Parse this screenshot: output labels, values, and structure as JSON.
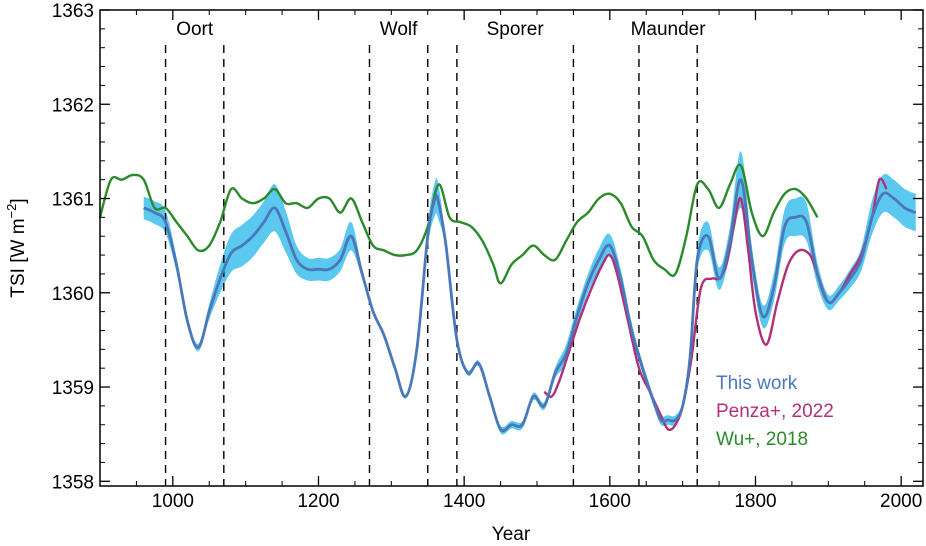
{
  "chart_data": {
    "type": "line",
    "xlabel": "Year",
    "ylabel": "TSI [W m",
    "ylabel_superscript": "−2",
    "ylabel_suffix": "]",
    "xlim": [
      900,
      2030
    ],
    "ylim": [
      1357.95,
      1363
    ],
    "x_ticks": [
      1000,
      1200,
      1400,
      1600,
      1800,
      2000
    ],
    "y_ticks": [
      1358,
      1359,
      1360,
      1361,
      1362,
      1363
    ],
    "x_tick_labels": [
      "1000",
      "1200",
      "1400",
      "1600",
      "1800",
      "2000"
    ],
    "y_tick_labels": [
      "1358",
      "1359",
      "1360",
      "1361",
      "1362",
      "1363"
    ],
    "grid": false,
    "legend_position": "bottom-right",
    "minima": [
      {
        "name": "Oort",
        "start": 990,
        "end": 1070
      },
      {
        "name": "Wolf",
        "start": 1270,
        "end": 1350
      },
      {
        "name": "Sporer",
        "start": 1390,
        "end": 1550
      },
      {
        "name": "Maunder",
        "start": 1640,
        "end": 1720
      }
    ],
    "series": [
      {
        "name": "This work",
        "color": "#4a78b8",
        "band_color": "#5bc8ef",
        "x": [
          960,
          975,
          990,
          1005,
          1020,
          1035,
          1050,
          1065,
          1080,
          1095,
          1110,
          1125,
          1140,
          1155,
          1170,
          1185,
          1200,
          1215,
          1230,
          1245,
          1260,
          1275,
          1290,
          1305,
          1320,
          1335,
          1350,
          1360,
          1365,
          1375,
          1390,
          1405,
          1420,
          1435,
          1450,
          1465,
          1480,
          1495,
          1510,
          1525,
          1540,
          1555,
          1570,
          1585,
          1600,
          1615,
          1630,
          1645,
          1660,
          1670,
          1680,
          1690,
          1700,
          1710,
          1720,
          1735,
          1750,
          1765,
          1780,
          1795,
          1810,
          1825,
          1840,
          1855,
          1870,
          1885,
          1900,
          1915,
          1930,
          1945,
          1960,
          1975,
          1990,
          2005,
          2020
        ],
        "y": [
          1360.9,
          1360.85,
          1360.75,
          1360.3,
          1359.7,
          1359.42,
          1359.8,
          1360.15,
          1360.42,
          1360.5,
          1360.6,
          1360.75,
          1360.9,
          1360.65,
          1360.35,
          1360.25,
          1360.25,
          1360.25,
          1360.35,
          1360.6,
          1360.2,
          1359.8,
          1359.55,
          1359.2,
          1358.9,
          1359.4,
          1360.6,
          1361.0,
          1360.95,
          1360.5,
          1359.5,
          1359.15,
          1359.25,
          1358.9,
          1358.55,
          1358.6,
          1358.6,
          1358.9,
          1358.8,
          1359.15,
          1359.35,
          1359.75,
          1360.1,
          1360.35,
          1360.5,
          1360.15,
          1359.6,
          1359.2,
          1358.85,
          1358.65,
          1358.65,
          1358.65,
          1358.8,
          1359.3,
          1360.35,
          1360.6,
          1360.15,
          1360.55,
          1361.2,
          1360.35,
          1359.75,
          1360.05,
          1360.7,
          1360.8,
          1360.75,
          1360.2,
          1359.9,
          1360.0,
          1360.15,
          1360.35,
          1360.8,
          1361.05,
          1361.0,
          1360.9,
          1360.85
        ],
        "band_half_width": [
          0.12,
          0.12,
          0.12,
          0.08,
          0.05,
          0.04,
          0.08,
          0.15,
          0.2,
          0.22,
          0.22,
          0.22,
          0.25,
          0.22,
          0.15,
          0.12,
          0.12,
          0.12,
          0.12,
          0.15,
          0.05,
          0.03,
          0.02,
          0.02,
          0.02,
          0.05,
          0.12,
          0.18,
          0.18,
          0.05,
          0.03,
          0.03,
          0.03,
          0.03,
          0.04,
          0.04,
          0.04,
          0.04,
          0.04,
          0.06,
          0.1,
          0.1,
          0.1,
          0.12,
          0.12,
          0.1,
          0.08,
          0.06,
          0.05,
          0.05,
          0.05,
          0.05,
          0.05,
          0.08,
          0.12,
          0.15,
          0.12,
          0.15,
          0.3,
          0.15,
          0.12,
          0.15,
          0.18,
          0.2,
          0.2,
          0.12,
          0.08,
          0.08,
          0.1,
          0.12,
          0.18,
          0.2,
          0.2,
          0.2,
          0.2
        ]
      },
      {
        "name": "Penza+, 2022",
        "color": "#b0307a",
        "x": [
          1510,
          1520,
          1530,
          1545,
          1560,
          1575,
          1590,
          1600,
          1610,
          1625,
          1640,
          1655,
          1670,
          1680,
          1690,
          1700,
          1712,
          1725,
          1740,
          1750,
          1760,
          1770,
          1780,
          1790,
          1800,
          1815,
          1830,
          1845,
          1860,
          1875,
          1885,
          1900,
          1915,
          1930,
          1945,
          1960,
          1970,
          1980
        ],
        "y": [
          1358.95,
          1358.9,
          1359.05,
          1359.4,
          1359.75,
          1360.05,
          1360.3,
          1360.4,
          1360.2,
          1359.7,
          1359.2,
          1358.95,
          1358.7,
          1358.55,
          1358.6,
          1358.8,
          1359.3,
          1360.05,
          1360.15,
          1360.15,
          1360.3,
          1360.7,
          1361.0,
          1360.45,
          1359.8,
          1359.45,
          1359.9,
          1360.3,
          1360.45,
          1360.4,
          1360.2,
          1359.9,
          1360.0,
          1360.2,
          1360.4,
          1360.8,
          1361.2,
          1361.1
        ]
      },
      {
        "name": "Wu+, 2018",
        "color": "#2b8a2b",
        "x": [
          900,
          915,
          930,
          945,
          960,
          975,
          990,
          1005,
          1020,
          1035,
          1050,
          1065,
          1080,
          1095,
          1110,
          1125,
          1140,
          1155,
          1170,
          1185,
          1200,
          1215,
          1230,
          1245,
          1260,
          1275,
          1290,
          1305,
          1320,
          1335,
          1350,
          1365,
          1380,
          1395,
          1410,
          1425,
          1440,
          1450,
          1465,
          1480,
          1495,
          1510,
          1525,
          1540,
          1555,
          1570,
          1585,
          1600,
          1615,
          1630,
          1645,
          1660,
          1675,
          1690,
          1705,
          1720,
          1735,
          1750,
          1765,
          1780,
          1795,
          1810,
          1825,
          1840,
          1855,
          1870,
          1885
        ],
        "y": [
          1360.8,
          1361.2,
          1361.2,
          1361.25,
          1361.2,
          1360.9,
          1360.9,
          1360.75,
          1360.6,
          1360.45,
          1360.5,
          1360.75,
          1361.1,
          1361.0,
          1360.95,
          1361.0,
          1361.1,
          1360.95,
          1360.95,
          1360.9,
          1361.0,
          1361.0,
          1360.85,
          1361.0,
          1360.75,
          1360.5,
          1360.45,
          1360.4,
          1360.4,
          1360.45,
          1360.7,
          1361.15,
          1360.8,
          1360.75,
          1360.7,
          1360.55,
          1360.3,
          1360.1,
          1360.3,
          1360.4,
          1360.5,
          1360.4,
          1360.35,
          1360.55,
          1360.75,
          1360.85,
          1361.0,
          1361.05,
          1360.95,
          1360.7,
          1360.6,
          1360.35,
          1360.25,
          1360.2,
          1360.6,
          1361.15,
          1361.1,
          1360.9,
          1361.15,
          1361.35,
          1360.85,
          1360.6,
          1360.85,
          1361.05,
          1361.1,
          1361.0,
          1360.8
        ]
      }
    ]
  }
}
